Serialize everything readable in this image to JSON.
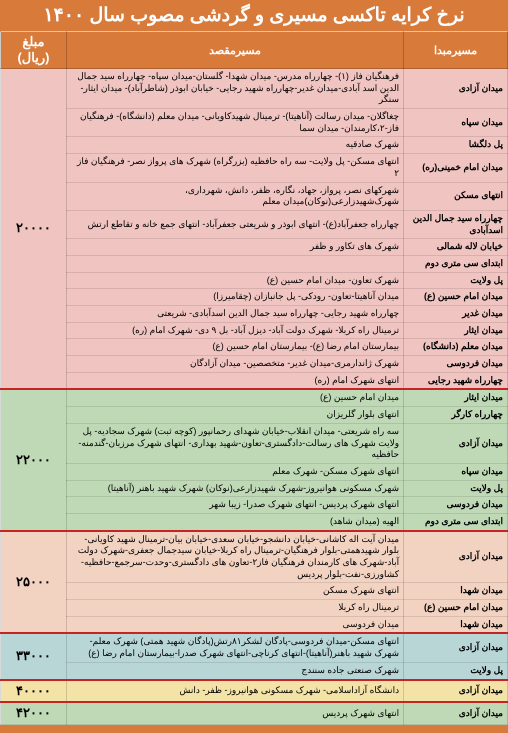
{
  "title": "نرخ کرایه تاکسی مسیری و گردشی مصوب سال ۱۴۰۰",
  "columns": {
    "origin": "مسیرمبدا",
    "dest": "مسیرمقصد",
    "price": "مبلغ (ریال)"
  },
  "section_colors": {
    "pink": "#f0c4c1",
    "green": "#bfd9b6",
    "peach": "#f2d2c1",
    "blue": "#b9d6d7",
    "yellow": "#f4e3a6"
  },
  "sections": [
    {
      "price": "۲۰۰۰۰",
      "color_key": "pink",
      "rows": [
        {
          "origin": "میدان آزادی",
          "dest": "فرهنگیان فاز (۱)- چهارراه مدرس- میدان شهدا- گلستان-میدان سپاه- چهارراه سید جمال الدین اسد آبادی-میدان غدیر-چهارراه شهید رجایی- خیابان ابوذر (شاطرآباد)- میدان ایثار- سنگر"
        },
        {
          "origin": "میدان سپاه",
          "dest": "چغاگلان- میدان رسالت (آناهیتا)- ترمینال شهیدکاویانی- میدان معلم (دانشگاه)- فرهنگیان فاز-۲،کارمندان- میدان سما"
        },
        {
          "origin": "پل دلگشا",
          "dest": "شهرک صادقیه"
        },
        {
          "origin": "میدان امام خمینی(ره)",
          "dest": "انتهای مسکن- پل ولایت- سه راه حافظیه (بزرگراه) شهرک های پرواز نصر- فرهنگیان فاز ۲"
        },
        {
          "origin": "انتهای مسکن",
          "dest": "شهرکهای نصر، پرواز، جهاد، نگاره، ظفر، دانش، شهرداری، شهرک‌شهیدزارعی(نوکان)میدان معلم"
        },
        {
          "origin": "چهارراه سید جمال الدین اسدآبادی",
          "dest": "چهارراه جعفرآباد(ع)- انتهای ابوذر و شریعتی جعفرآباد- انتهای جمع خانه و تقاطع ارتش"
        },
        {
          "origin": "خیابان لاله شمالی",
          "dest": "شهرک های تکاور و ظفر"
        },
        {
          "origin": "ابتدای سی متری دوم",
          "dest": ""
        },
        {
          "origin": "پل ولایت",
          "dest": "شهرک تعاون- میدان امام حسین (ع)"
        },
        {
          "origin": "میدان امام حسین (ع)",
          "dest": "میدان آناهیتا-تعاون- رودکی- پل جانبازان (چقامیرزا)"
        },
        {
          "origin": "میدان غدیر",
          "dest": "چهارراه شهید رجایی- چهارراه سید جمال الدین اسدآبادی- شریعتی"
        },
        {
          "origin": "میدان ایثار",
          "dest": "ترمینال راه کربلا- شهرک دولت آباد- دیزل آباد- بل ۹ دی- شهرک امام (ره)"
        },
        {
          "origin": "میدان معلم (دانشگاه)",
          "dest": "بیمارستان امام رضا (ع)- بیمارستان امام حسین (ع)"
        },
        {
          "origin": "میدان فردوسی",
          "dest": "شهرک ژاندارمری-میدان غدیر- متخصصین- میدان آزادگان"
        },
        {
          "origin": "چهارراه شهید رجایی",
          "dest": "انتهای شهرک امام (ره)"
        }
      ]
    },
    {
      "price": "۲۲۰۰۰",
      "color_key": "green",
      "rows": [
        {
          "origin": "میدان ایثار",
          "dest": "میدان امام حسین (ع)"
        },
        {
          "origin": "چهارراه کارگر",
          "dest": "انتهای بلوار گلریزان"
        },
        {
          "origin": "میدان آزادی",
          "dest": "سه راه شریعتی- میدان انقلاب-خیابان شهدای رحمانپور (کوچه ثبت) شهرک سجادیه- پل ولایت شهرک های رسالت-دادگستری-تعاون-شهید بهداری- انتهای شهرک مرزبان-گندمنه-حافظیه"
        },
        {
          "origin": "میدان سپاه",
          "dest": "انتهای شهرک مسکن- شهرک معلم"
        },
        {
          "origin": "پل ولایت",
          "dest": "شهرک مسکونی هوانیروز-شهرک شهیدزارعی(نوکان) شهرک شهید باهنر (آناهیتا)"
        },
        {
          "origin": "میدان فردوسی",
          "dest": "انتهای شهرک پردیس- انتهای شهرک صدرا- زیبا شهر"
        },
        {
          "origin": "ابتدای سی متری دوم",
          "dest": "الهیه (میدان شاهد)"
        }
      ]
    },
    {
      "price": "۲۵۰۰۰",
      "color_key": "peach",
      "rows": [
        {
          "origin": "میدان آزادی",
          "dest": "میدان آیت اله کاشانی-خیابان دانشجو-خیابان سعدی-خیابان بیان-ترمینال شهید کاویانی-بلوار شهیدهمتی-بلوار فرهنگیان-ترمینال راه کربلا-خیابان سیدجمال جعفری-شهرک دولت آباد-شهرک های کارمندان فرهنگیان فاز۲-تعاون های دادگستری-وحدت-سرجمع-حافظیه-کشاورزی-نفت-بلوار پردیس"
        },
        {
          "origin": "میدان شهدا",
          "dest": "انتهای شهرک مسکن"
        },
        {
          "origin": "میدان امام حسین (ع)",
          "dest": "ترمینال راه کربلا"
        },
        {
          "origin": "میدان شهدا",
          "dest": "میدان فردوسی"
        }
      ]
    },
    {
      "price": "۳۳۰۰۰",
      "color_key": "blue",
      "rows": [
        {
          "origin": "میدان آزادی",
          "dest": "انتهای مسکن-میدان فردوسی-پادگان لشکر۸۱رتش(پادگان شهید همتی) شهرک معلم-شهرک شهید باهنر(آناهیتا)-انتهای کرناچی-انتهای شهرک صدرا-بیمارستان امام رضا (ع)"
        },
        {
          "origin": "پل ولایت",
          "dest": "شهرک صنعتی جاده سنندج"
        }
      ]
    },
    {
      "price": "۴۰۰۰۰",
      "color_key": "yellow",
      "rows": [
        {
          "origin": "میدان آزادی",
          "dest": "دانشگاه آزاداسلامی- شهرک مسکونی هوانیروز- ظفر- دانش"
        }
      ]
    },
    {
      "price": "۴۲۰۰۰",
      "color_key": "green",
      "rows": [
        {
          "origin": "میدان آزادی",
          "dest": "انتهای شهرک پردیس"
        }
      ]
    }
  ]
}
